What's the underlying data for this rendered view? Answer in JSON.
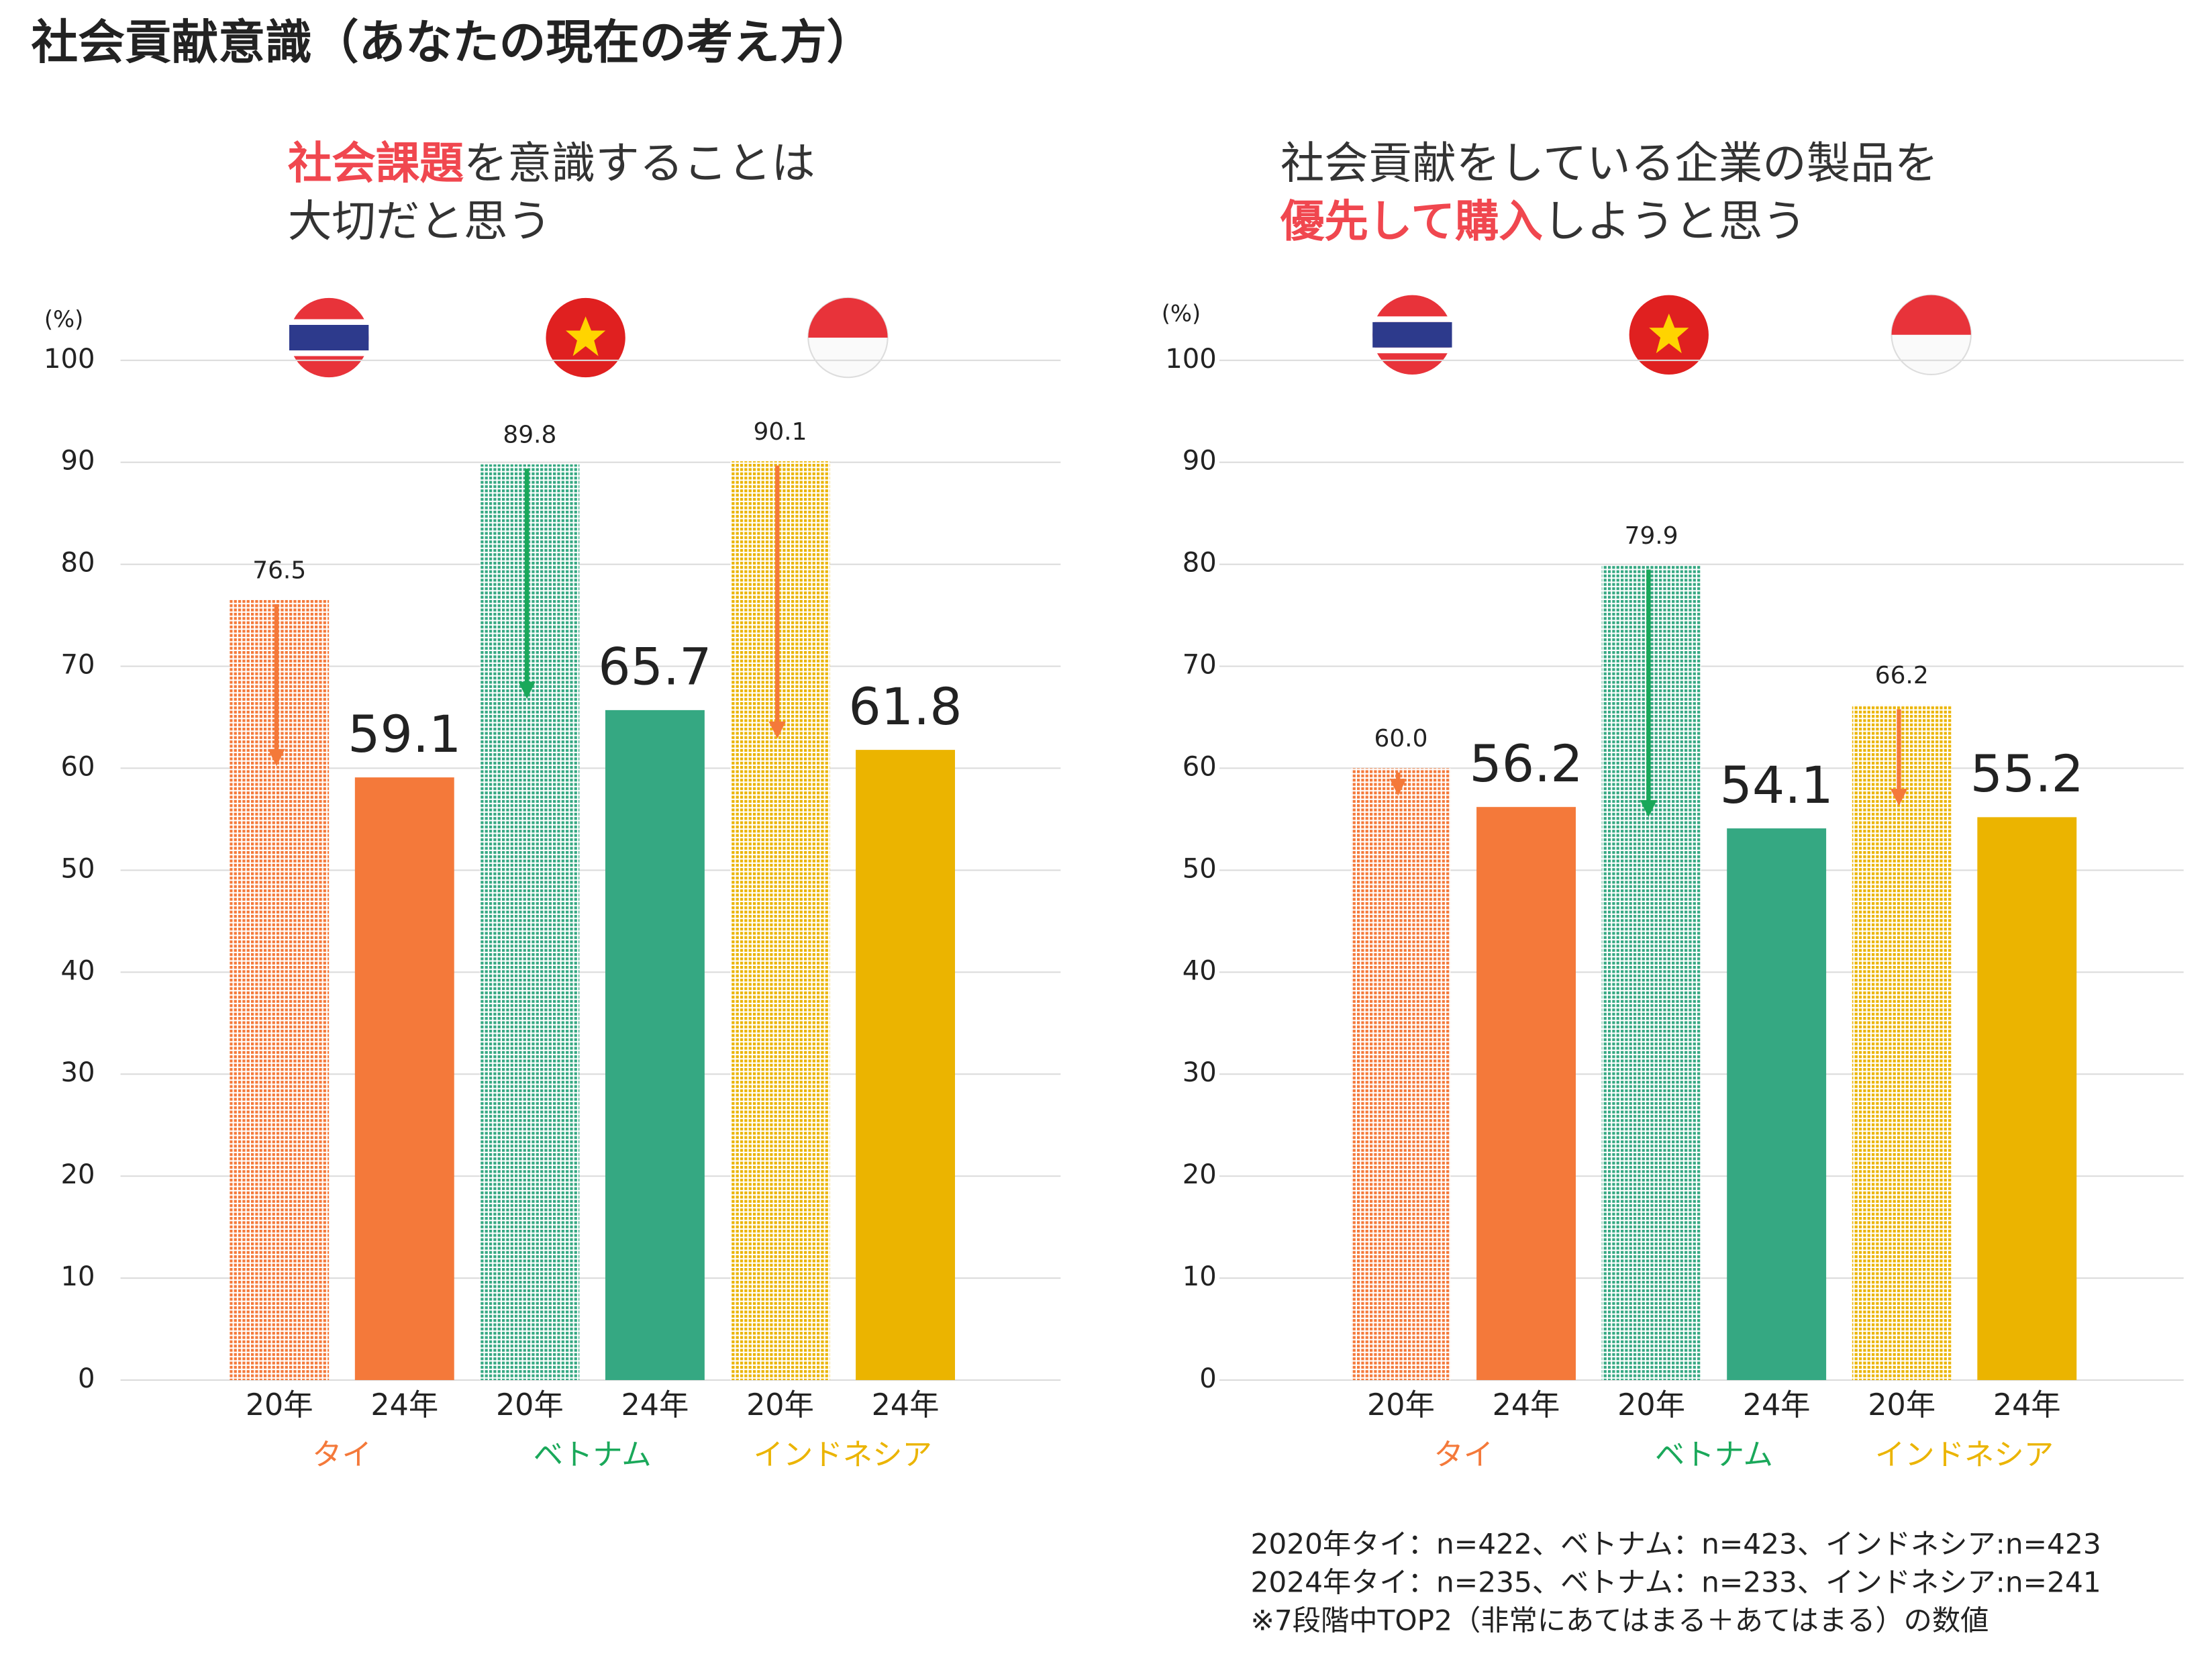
{
  "title": "社会貢献意識（あなたの現在の考え方）",
  "chart_data": [
    {
      "type": "bar",
      "title_lines": [
        [
          {
            "text": "社会課題",
            "highlight": true
          },
          {
            "text": "を意識することは",
            "highlight": false
          }
        ],
        [
          {
            "text": "大切だと思う",
            "highlight": false
          }
        ]
      ],
      "y_unit": "(%)",
      "categories": [
        "20年",
        "24年",
        "20年",
        "24年",
        "20年",
        "24年"
      ],
      "values": [
        76.5,
        59.1,
        89.8,
        65.7,
        90.1,
        61.8
      ],
      "value_labels": [
        "76.5",
        "59.1",
        "89.8",
        "65.7",
        "90.1",
        "61.8"
      ],
      "colors": [
        "#f4793a",
        "#f4793a",
        "#35a882",
        "#35a882",
        "#ebb400",
        "#ebb400"
      ],
      "hatched": [
        true,
        false,
        true,
        false,
        true,
        false
      ],
      "groups": [
        {
          "label": "タイ",
          "color": "#f4793a",
          "arrow_color": "#f4793a"
        },
        {
          "label": "ベトナム",
          "color": "#1aa85a",
          "arrow_color": "#1aa85a"
        },
        {
          "label": "インドネシア",
          "color": "#ebb400",
          "arrow_color": "#f4793a"
        }
      ],
      "ylim": [
        0,
        100
      ],
      "yticks": [
        0,
        10,
        20,
        30,
        40,
        50,
        60,
        70,
        80,
        90,
        100
      ],
      "grid": true
    },
    {
      "type": "bar",
      "title_lines": [
        [
          {
            "text": "社会貢献をしている企業の製品を",
            "highlight": false
          }
        ],
        [
          {
            "text": "優先して購入",
            "highlight": true
          },
          {
            "text": "しようと思う",
            "highlight": false
          }
        ]
      ],
      "y_unit": "(%)",
      "categories": [
        "20年",
        "24年",
        "20年",
        "24年",
        "20年",
        "24年"
      ],
      "values": [
        60.0,
        56.2,
        79.9,
        54.1,
        66.2,
        55.2
      ],
      "value_labels": [
        "60.0",
        "56.2",
        "79.9",
        "54.1",
        "66.2",
        "55.2"
      ],
      "colors": [
        "#f4793a",
        "#f4793a",
        "#35a882",
        "#35a882",
        "#ebb400",
        "#ebb400"
      ],
      "hatched": [
        true,
        false,
        true,
        false,
        true,
        false
      ],
      "groups": [
        {
          "label": "タイ",
          "color": "#f4793a",
          "arrow_color": "#f4793a"
        },
        {
          "label": "ベトナム",
          "color": "#1aa85a",
          "arrow_color": "#1aa85a"
        },
        {
          "label": "インドネシア",
          "color": "#ebb400",
          "arrow_color": "#f4793a"
        }
      ],
      "ylim": [
        0,
        100
      ],
      "yticks": [
        0,
        10,
        20,
        30,
        40,
        50,
        60,
        70,
        80,
        90,
        100
      ],
      "grid": true
    }
  ],
  "footnotes": [
    "2020年タイ：n=422、ベトナム：n=423、インドネシア:n=423",
    "2024年タイ：n=235、ベトナム：n=233、インドネシア:n=241",
    "※7段階中TOP2（非常にあてはまる＋あてはまる）の数値"
  ]
}
